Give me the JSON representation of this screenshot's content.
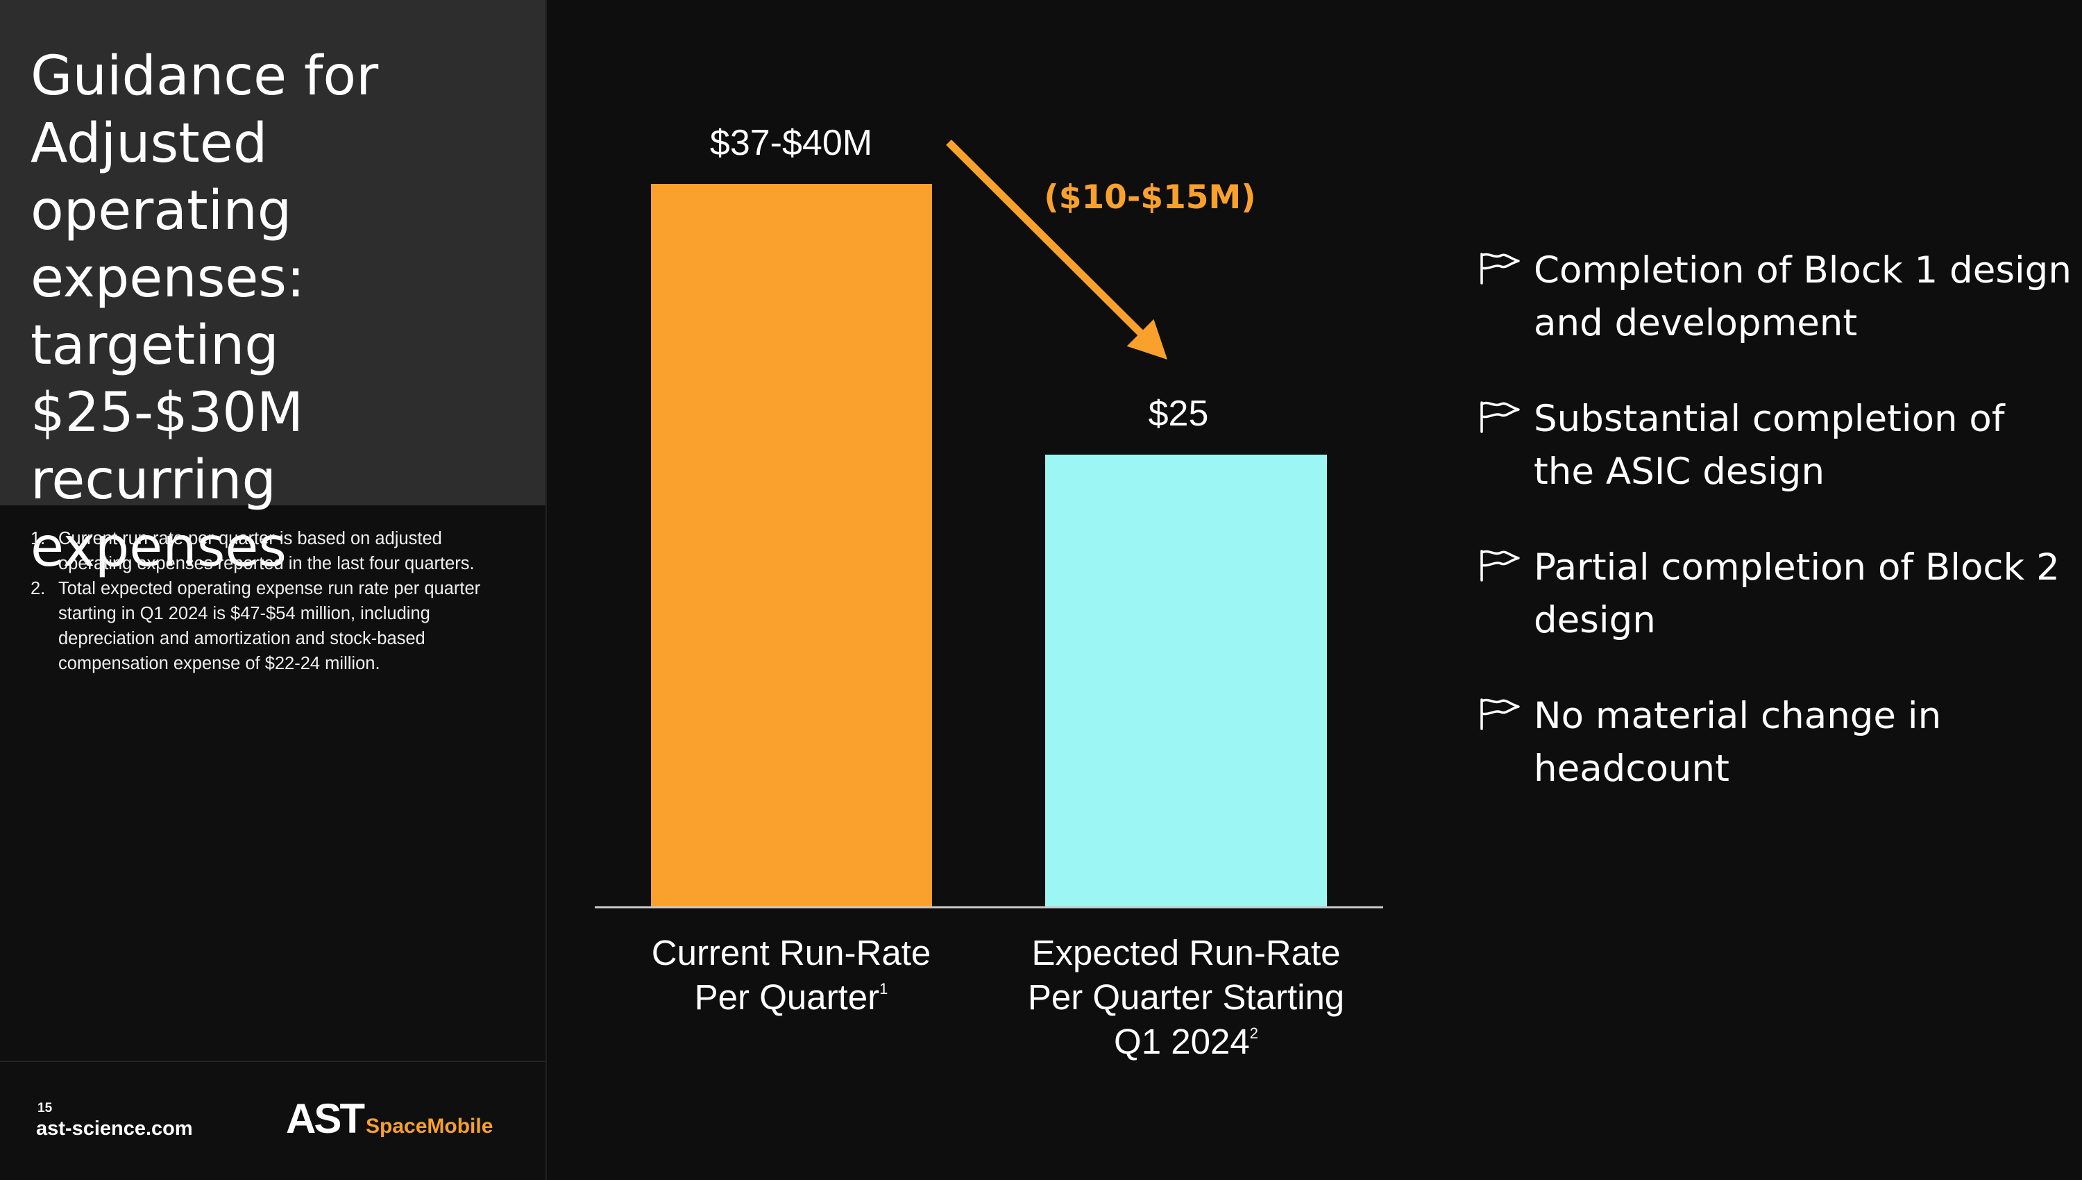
{
  "title": "Guidance for Adjusted operating expenses: targeting $25-$30M recurring expenses",
  "footnotes": [
    {
      "num": "1.",
      "text": "Current run rate per quarter is based on adjusted operating expenses reported in the last four quarters."
    },
    {
      "num": "2.",
      "text": "Total expected operating expense run rate per quarter starting in Q1 2024 is $47-$54 million, including depreciation and amortization and stock-based compensation expense of $22-24 million."
    }
  ],
  "footer": {
    "page_number": "15",
    "website": "ast-science.com",
    "logo_mark": "AST",
    "logo_sub": "SpaceMobile"
  },
  "chart_data": {
    "type": "bar",
    "title": "",
    "xlabel": "",
    "ylabel": "",
    "ylim": [
      0,
      45
    ],
    "categories": [
      "Current Run-Rate Per Quarter",
      "Expected Run-Rate Per Quarter Starting Q1 2024"
    ],
    "category_label_lines": [
      [
        "Current Run-Rate",
        "Per Quarter"
      ],
      [
        "Expected Run-Rate",
        "Per Quarter Starting",
        "Q1 2024"
      ]
    ],
    "category_superscripts": [
      "1",
      "2"
    ],
    "values": [
      40,
      25
    ],
    "data_labels": [
      "$37-$40M",
      "$25"
    ],
    "colors": [
      "#f9a12c",
      "#9cf6f3"
    ],
    "arrow_color": "#f9a12c",
    "annotation": "($10-$15M)"
  },
  "bullets": [
    {
      "icon": "flag-icon",
      "text": "Completion of Block 1 design and development"
    },
    {
      "icon": "flag-icon",
      "text": "Substantial completion of the ASIC design"
    },
    {
      "icon": "flag-icon",
      "text": "Partial completion of Block 2 design"
    },
    {
      "icon": "flag-icon",
      "text": "No material change in headcount"
    }
  ]
}
